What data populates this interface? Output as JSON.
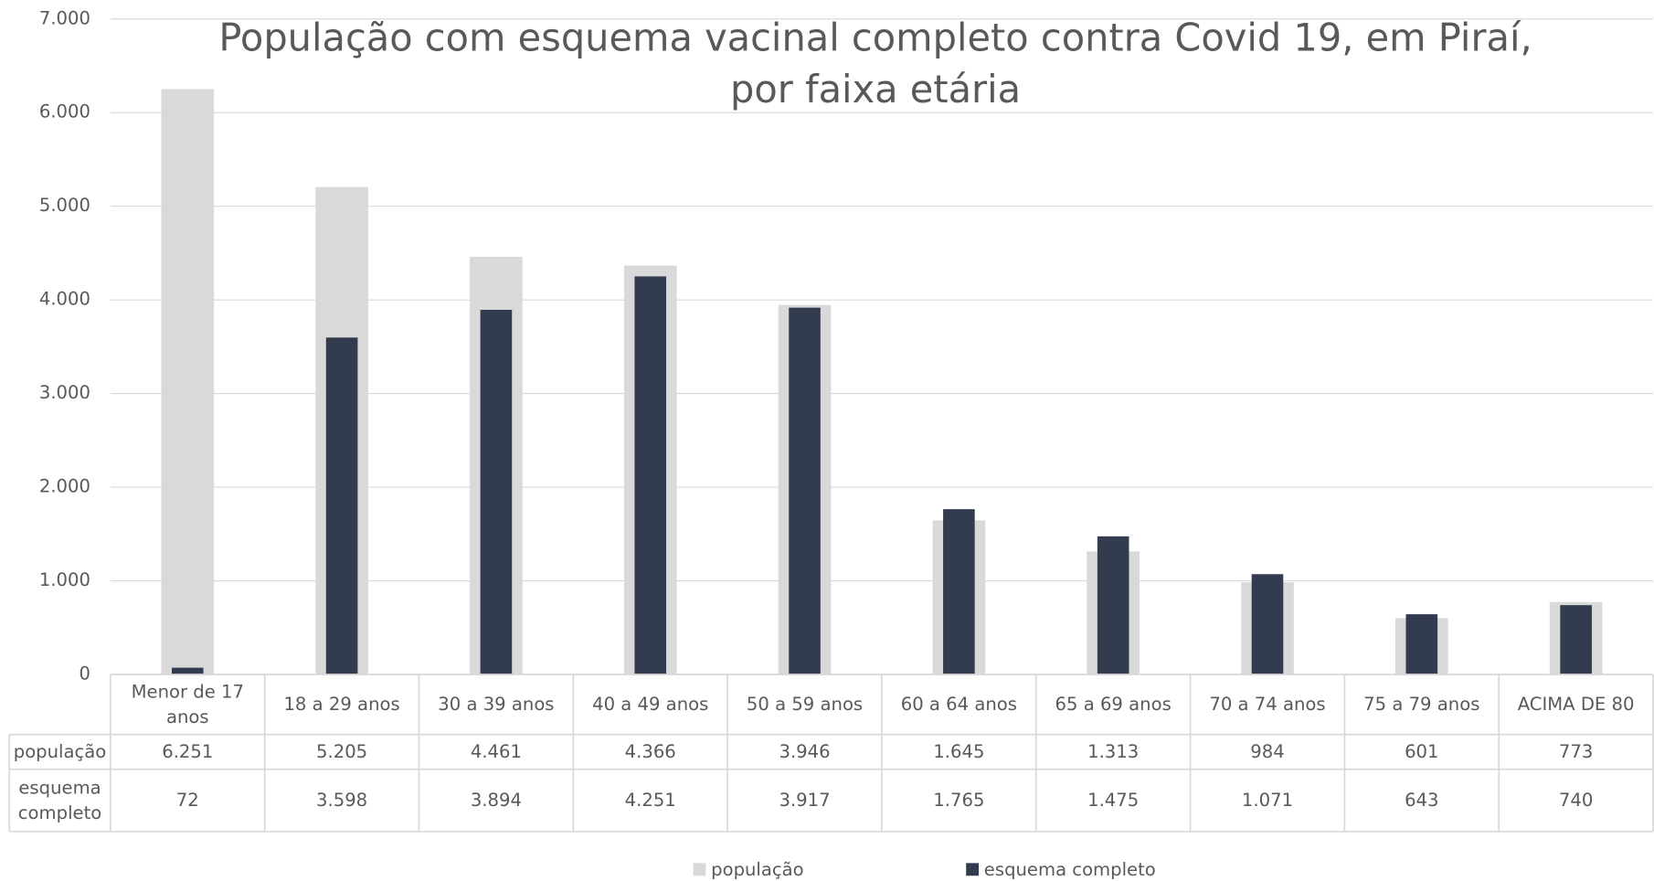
{
  "chart_data": {
    "type": "bar",
    "title": "População com esquema vacinal completo contra Covid 19, em Piraí, por faixa etária",
    "categories": [
      "Menor de 17 anos",
      "18 a 29 anos",
      "30 a 39 anos",
      "40 a 49 anos",
      "50 a 59 anos",
      "60 a 64 anos",
      "65 a 69 anos",
      "70 a 74 anos",
      "75 a 79 anos",
      "ACIMA DE 80"
    ],
    "series": [
      {
        "name": "população",
        "color": "#d9d9d9",
        "values": [
          6251,
          5205,
          4461,
          4366,
          3946,
          1645,
          1313,
          984,
          601,
          773
        ],
        "value_labels": [
          "6.251",
          "5.205",
          "4.461",
          "4.366",
          "3.946",
          "1.645",
          "1.313",
          "984",
          "601",
          "773"
        ]
      },
      {
        "name": "esquema completo",
        "color": "#323c4e",
        "values": [
          72,
          3598,
          3894,
          4251,
          3917,
          1765,
          1475,
          1071,
          643,
          740
        ],
        "value_labels": [
          "72",
          "3.598",
          "3.894",
          "4.251",
          "3.917",
          "1.765",
          "1.475",
          "1.071",
          "643",
          "740"
        ]
      }
    ],
    "ylim": [
      0,
      7000
    ],
    "yticks": [
      0,
      {
        "value": 1000,
        "label": "1.000"
      },
      {
        "value": 2000,
        "label": "2.000"
      },
      {
        "value": 3000,
        "label": "3.000"
      },
      {
        "value": 4000,
        "label": "4.000"
      },
      {
        "value": 5000,
        "label": "5.000"
      },
      {
        "value": 6000,
        "label": "6.000"
      },
      {
        "value": 7000,
        "label": "7.000"
      }
    ],
    "grid": true,
    "legend": "bottom"
  }
}
